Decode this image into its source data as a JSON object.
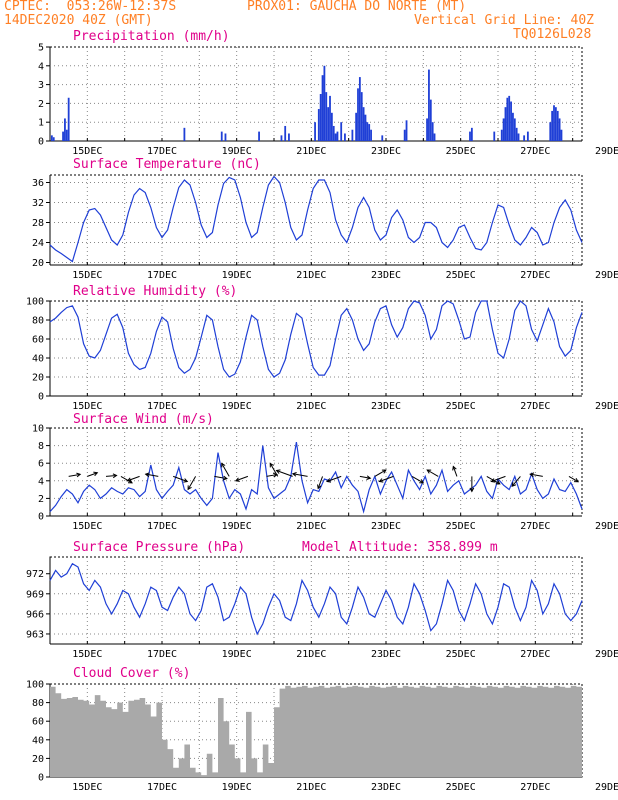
{
  "header": {
    "line1_left": "CPTEC:  053:26W-12:37S",
    "line1_right": "PROX01: GAUCHA DO NORTE (MT)",
    "line2_left": "14DEC2020 40Z (GMT)",
    "line2_right": "Vertical Grid Line: 40Z",
    "line3_right": "TQ0126L028"
  },
  "colors": {
    "header": "#ff7f24",
    "title": "#e0008a",
    "line": "#1f3fd6",
    "bar": "#1f3fd6",
    "cloud": "#a9a9a9",
    "arrow": "#000000"
  },
  "x_ticks": [
    "15DEC",
    "17DEC",
    "19DEC",
    "21DEC",
    "23DEC",
    "25DEC",
    "27DEC",
    "29DEC"
  ],
  "chart_data": [
    {
      "id": "precip",
      "type": "bar",
      "title": "Precipitation (mm/h)",
      "ylim": [
        0,
        5
      ],
      "yticks": [
        0,
        1,
        2,
        3,
        4,
        5
      ],
      "x_unit": "days since 14DEC2020 00Z",
      "x": [
        0.05,
        0.1,
        0.35,
        0.4,
        0.45,
        0.5,
        3.6,
        4.6,
        4.7,
        5.6,
        6.2,
        6.3,
        6.4,
        7.1,
        7.2,
        7.25,
        7.3,
        7.35,
        7.4,
        7.45,
        7.5,
        7.55,
        7.6,
        7.65,
        7.7,
        7.8,
        7.9,
        8.1,
        8.2,
        8.25,
        8.3,
        8.35,
        8.4,
        8.45,
        8.5,
        8.55,
        8.6,
        8.9,
        9.5,
        9.55,
        10.1,
        10.15,
        10.2,
        10.25,
        10.3,
        11.25,
        11.3,
        11.9,
        12.1,
        12.15,
        12.2,
        12.25,
        12.3,
        12.35,
        12.4,
        12.45,
        12.5,
        12.55,
        12.7,
        12.8,
        13.4,
        13.45,
        13.5,
        13.55,
        13.6,
        13.65,
        13.7
      ],
      "values": [
        0.3,
        0.2,
        0.5,
        1.2,
        0.6,
        2.3,
        0.7,
        0.5,
        0.4,
        0.5,
        0.3,
        0.8,
        0.4,
        1.0,
        1.7,
        2.5,
        3.5,
        4.0,
        2.6,
        1.8,
        2.4,
        1.5,
        0.8,
        0.4,
        0.5,
        1.0,
        0.4,
        0.6,
        1.5,
        2.8,
        3.4,
        2.6,
        1.8,
        1.4,
        1.0,
        0.9,
        0.6,
        0.3,
        0.6,
        1.1,
        1.2,
        3.8,
        2.2,
        1.0,
        0.4,
        0.5,
        0.7,
        0.5,
        0.6,
        1.2,
        1.8,
        2.3,
        2.4,
        2.1,
        1.5,
        1.2,
        0.7,
        0.4,
        0.3,
        0.5,
        1.0,
        1.6,
        1.9,
        1.8,
        1.6,
        1.2,
        0.6
      ]
    },
    {
      "id": "temp",
      "type": "line",
      "title": "Surface Temperature (nC)",
      "ylim": [
        19.5,
        37.5
      ],
      "yticks": [
        20,
        24,
        28,
        32,
        36
      ],
      "x_unit": "days since 14DEC2020 00Z",
      "x": [
        0,
        0.15,
        0.3,
        0.45,
        0.6,
        0.75,
        0.9,
        1.05,
        1.2,
        1.35,
        1.5,
        1.65,
        1.8,
        1.95,
        2.1,
        2.25,
        2.4,
        2.55,
        2.7,
        2.85,
        3.0,
        3.15,
        3.3,
        3.45,
        3.6,
        3.75,
        3.9,
        4.05,
        4.2,
        4.35,
        4.5,
        4.65,
        4.8,
        4.95,
        5.1,
        5.25,
        5.4,
        5.55,
        5.7,
        5.85,
        6.0,
        6.15,
        6.3,
        6.45,
        6.6,
        6.75,
        6.9,
        7.05,
        7.2,
        7.35,
        7.5,
        7.65,
        7.8,
        7.95,
        8.1,
        8.25,
        8.4,
        8.55,
        8.7,
        8.85,
        9.0,
        9.15,
        9.3,
        9.45,
        9.6,
        9.75,
        9.9,
        10.05,
        10.2,
        10.35,
        10.5,
        10.65,
        10.8,
        10.95,
        11.1,
        11.25,
        11.4,
        11.55,
        11.7,
        11.85,
        12.0,
        12.15,
        12.3,
        12.45,
        12.6,
        12.75,
        12.9,
        13.05,
        13.2,
        13.35,
        13.5,
        13.65,
        13.8,
        13.95,
        14.1,
        14.25
      ],
      "values": [
        23.5,
        22.5,
        21.8,
        21.0,
        20.2,
        24.0,
        28.0,
        30.5,
        30.8,
        29.5,
        27.0,
        24.5,
        23.5,
        25.5,
        30.0,
        33.5,
        34.8,
        34.0,
        31.0,
        27.0,
        25.0,
        26.5,
        31.0,
        35.0,
        36.5,
        35.5,
        32.0,
        27.5,
        25.0,
        26.0,
        31.5,
        35.8,
        37.0,
        36.5,
        33.0,
        28.0,
        25.0,
        26.0,
        31.0,
        35.5,
        37.2,
        36.0,
        32.0,
        27.0,
        24.5,
        25.5,
        30.5,
        34.8,
        36.5,
        36.5,
        34.0,
        28.5,
        25.5,
        24.0,
        27.0,
        31.0,
        33.0,
        31.0,
        26.5,
        24.5,
        25.5,
        29.0,
        30.5,
        28.5,
        25.0,
        24.0,
        25.0,
        28.0,
        28.0,
        27.0,
        24.0,
        23.0,
        24.5,
        27.0,
        27.5,
        25.0,
        22.8,
        22.5,
        24.0,
        28.0,
        31.5,
        31.0,
        27.5,
        24.5,
        23.5,
        25.0,
        27.0,
        26.0,
        23.5,
        24.0,
        28.0,
        31.0,
        32.5,
        30.5,
        26.5,
        24.0
      ]
    },
    {
      "id": "rh",
      "type": "line",
      "title": "Relative Humidity (%)",
      "ylim": [
        0,
        100
      ],
      "yticks": [
        0,
        20,
        40,
        60,
        80,
        100
      ],
      "x_unit": "days since 14DEC2020 00Z",
      "x": [
        0,
        0.15,
        0.3,
        0.45,
        0.6,
        0.75,
        0.9,
        1.05,
        1.2,
        1.35,
        1.5,
        1.65,
        1.8,
        1.95,
        2.1,
        2.25,
        2.4,
        2.55,
        2.7,
        2.85,
        3.0,
        3.15,
        3.3,
        3.45,
        3.6,
        3.75,
        3.9,
        4.05,
        4.2,
        4.35,
        4.5,
        4.65,
        4.8,
        4.95,
        5.1,
        5.25,
        5.4,
        5.55,
        5.7,
        5.85,
        6.0,
        6.15,
        6.3,
        6.45,
        6.6,
        6.75,
        6.9,
        7.05,
        7.2,
        7.35,
        7.5,
        7.65,
        7.8,
        7.95,
        8.1,
        8.25,
        8.4,
        8.55,
        8.7,
        8.85,
        9.0,
        9.15,
        9.3,
        9.45,
        9.6,
        9.75,
        9.9,
        10.05,
        10.2,
        10.35,
        10.5,
        10.65,
        10.8,
        10.95,
        11.1,
        11.25,
        11.4,
        11.55,
        11.7,
        11.85,
        12.0,
        12.15,
        12.3,
        12.45,
        12.6,
        12.75,
        12.9,
        13.05,
        13.2,
        13.35,
        13.5,
        13.65,
        13.8,
        13.95,
        14.1,
        14.25
      ],
      "values": [
        78,
        82,
        88,
        93,
        95,
        83,
        55,
        42,
        40,
        48,
        65,
        82,
        86,
        72,
        45,
        33,
        28,
        30,
        45,
        68,
        83,
        78,
        50,
        30,
        24,
        28,
        40,
        62,
        85,
        80,
        52,
        28,
        20,
        23,
        36,
        62,
        85,
        80,
        52,
        28,
        20,
        24,
        38,
        65,
        87,
        82,
        55,
        30,
        22,
        22,
        32,
        60,
        85,
        92,
        80,
        60,
        48,
        55,
        78,
        92,
        95,
        75,
        62,
        72,
        92,
        100,
        98,
        85,
        60,
        70,
        95,
        100,
        97,
        80,
        60,
        62,
        88,
        100,
        100,
        70,
        45,
        40,
        60,
        90,
        100,
        95,
        70,
        58,
        75,
        92,
        78,
        52,
        42,
        48,
        72,
        88
      ]
    },
    {
      "id": "wind",
      "type": "line",
      "title": "Surface Wind (m/s)",
      "ylim": [
        0,
        10
      ],
      "yticks": [
        0,
        2,
        4,
        6,
        8,
        10
      ],
      "x_unit": "days since 14DEC2020 00Z",
      "x": [
        0,
        0.15,
        0.3,
        0.45,
        0.6,
        0.75,
        0.9,
        1.05,
        1.2,
        1.35,
        1.5,
        1.65,
        1.8,
        1.95,
        2.1,
        2.25,
        2.4,
        2.55,
        2.7,
        2.85,
        3.0,
        3.15,
        3.3,
        3.45,
        3.6,
        3.75,
        3.9,
        4.05,
        4.2,
        4.35,
        4.5,
        4.65,
        4.8,
        4.95,
        5.1,
        5.25,
        5.4,
        5.55,
        5.7,
        5.85,
        6.0,
        6.15,
        6.3,
        6.45,
        6.6,
        6.75,
        6.9,
        7.05,
        7.2,
        7.35,
        7.5,
        7.65,
        7.8,
        7.95,
        8.1,
        8.25,
        8.4,
        8.55,
        8.7,
        8.85,
        9.0,
        9.15,
        9.3,
        9.45,
        9.6,
        9.75,
        9.9,
        10.05,
        10.2,
        10.35,
        10.5,
        10.65,
        10.8,
        10.95,
        11.1,
        11.25,
        11.4,
        11.55,
        11.7,
        11.85,
        12.0,
        12.15,
        12.3,
        12.45,
        12.6,
        12.75,
        12.9,
        13.05,
        13.2,
        13.35,
        13.5,
        13.65,
        13.8,
        13.95,
        14.1,
        14.25
      ],
      "values": [
        0.5,
        1.2,
        2.2,
        3.0,
        2.5,
        1.5,
        2.8,
        3.5,
        3.0,
        2.0,
        2.5,
        3.2,
        2.8,
        2.5,
        3.2,
        3.0,
        2.2,
        2.8,
        5.8,
        3.0,
        2.0,
        2.8,
        3.5,
        5.5,
        3.0,
        2.5,
        3.0,
        2.0,
        1.2,
        2.0,
        7.2,
        4.0,
        2.0,
        3.0,
        2.5,
        0.8,
        3.0,
        2.5,
        8.0,
        3.2,
        2.0,
        2.5,
        3.0,
        4.5,
        8.4,
        4.0,
        1.5,
        3.0,
        2.8,
        4.2,
        4.0,
        5.0,
        3.2,
        4.5,
        3.5,
        2.8,
        0.5,
        3.0,
        4.5,
        2.5,
        4.0,
        5.0,
        3.5,
        2.0,
        5.2,
        4.0,
        3.0,
        4.5,
        2.5,
        3.5,
        5.2,
        2.8,
        3.5,
        4.0,
        2.5,
        3.0,
        3.5,
        4.5,
        2.8,
        2.0,
        4.2,
        3.5,
        3.0,
        4.5,
        2.5,
        3.0,
        4.8,
        3.0,
        2.0,
        2.5,
        4.2,
        3.0,
        2.8,
        3.8,
        2.5,
        0.8
      ],
      "arrows_x": [
        0.5,
        1.0,
        1.5,
        1.9,
        2.4,
        2.9,
        3.3,
        3.9,
        4.4,
        4.8,
        5.3,
        5.8,
        6.1,
        6.5,
        6.9,
        7.3,
        7.8,
        8.3,
        8.7,
        9.2,
        9.7,
        10.4,
        10.9,
        11.3,
        11.7,
        12.2,
        12.6,
        13.2,
        13.9
      ],
      "arrows_dir_deg": [
        80,
        70,
        85,
        120,
        250,
        280,
        110,
        210,
        100,
        330,
        250,
        80,
        330,
        290,
        280,
        200,
        250,
        100,
        60,
        250,
        120,
        300,
        340,
        180,
        120,
        250,
        220,
        280,
        120
      ],
      "arrows_speed": [
        3.5,
        3,
        3,
        4,
        4,
        4,
        5,
        5,
        4,
        5,
        4,
        3,
        5,
        6,
        5,
        4,
        5,
        3,
        4,
        5,
        4,
        4,
        3,
        5,
        5,
        5,
        4,
        4,
        3
      ]
    },
    {
      "id": "pres",
      "type": "line",
      "title": "Surface Pressure (hPa)",
      "subtitle": "Model Altitude: 358.899 m",
      "ylim": [
        961.5,
        974.5
      ],
      "yticks": [
        963,
        966,
        969,
        972
      ],
      "x_unit": "days since 14DEC2020 00Z",
      "x": [
        0,
        0.15,
        0.3,
        0.45,
        0.6,
        0.75,
        0.9,
        1.05,
        1.2,
        1.35,
        1.5,
        1.65,
        1.8,
        1.95,
        2.1,
        2.25,
        2.4,
        2.55,
        2.7,
        2.85,
        3.0,
        3.15,
        3.3,
        3.45,
        3.6,
        3.75,
        3.9,
        4.05,
        4.2,
        4.35,
        4.5,
        4.65,
        4.8,
        4.95,
        5.1,
        5.25,
        5.4,
        5.55,
        5.7,
        5.85,
        6.0,
        6.15,
        6.3,
        6.45,
        6.6,
        6.75,
        6.9,
        7.05,
        7.2,
        7.35,
        7.5,
        7.65,
        7.8,
        7.95,
        8.1,
        8.25,
        8.4,
        8.55,
        8.7,
        8.85,
        9.0,
        9.15,
        9.3,
        9.45,
        9.6,
        9.75,
        9.9,
        10.05,
        10.2,
        10.35,
        10.5,
        10.65,
        10.8,
        10.95,
        11.1,
        11.25,
        11.4,
        11.55,
        11.7,
        11.85,
        12.0,
        12.15,
        12.3,
        12.45,
        12.6,
        12.75,
        12.9,
        13.05,
        13.2,
        13.35,
        13.5,
        13.65,
        13.8,
        13.95,
        14.1,
        14.25
      ],
      "values": [
        971.0,
        972.5,
        971.5,
        972.0,
        973.5,
        973.0,
        970.5,
        969.5,
        971.0,
        970.0,
        967.5,
        966.0,
        967.5,
        969.5,
        969.0,
        967.0,
        965.5,
        967.5,
        970.0,
        969.5,
        967.0,
        966.5,
        968.5,
        970.0,
        969.0,
        966.0,
        965.0,
        966.5,
        970.0,
        970.5,
        968.5,
        965.0,
        965.5,
        967.5,
        970.0,
        969.0,
        965.5,
        963.0,
        964.5,
        967.0,
        969.0,
        968.0,
        965.5,
        965.0,
        967.5,
        971.0,
        969.5,
        967.0,
        965.5,
        967.5,
        970.0,
        969.0,
        965.5,
        964.5,
        967.0,
        970.0,
        968.5,
        966.0,
        965.5,
        967.5,
        969.5,
        968.0,
        965.5,
        964.5,
        967.0,
        970.5,
        969.0,
        966.5,
        963.5,
        964.5,
        967.5,
        971.0,
        969.5,
        966.5,
        965.0,
        967.5,
        970.5,
        969.0,
        966.0,
        964.5,
        967.0,
        970.5,
        970.0,
        967.0,
        965.0,
        967.0,
        971.0,
        969.5,
        966.0,
        967.5,
        970.5,
        969.0,
        966.0,
        965.0,
        966.0,
        968.0
      ]
    },
    {
      "id": "cloud",
      "type": "area",
      "title": "Cloud Cover (%)",
      "ylim": [
        0,
        100
      ],
      "yticks": [
        0,
        20,
        40,
        60,
        80,
        100
      ],
      "x_unit": "days since 14DEC2020 00Z",
      "x": [
        0,
        0.15,
        0.3,
        0.45,
        0.6,
        0.75,
        0.9,
        1.05,
        1.2,
        1.35,
        1.5,
        1.65,
        1.8,
        1.95,
        2.1,
        2.25,
        2.4,
        2.55,
        2.7,
        2.85,
        3.0,
        3.15,
        3.3,
        3.45,
        3.6,
        3.75,
        3.9,
        4.05,
        4.2,
        4.35,
        4.5,
        4.65,
        4.8,
        4.95,
        5.1,
        5.25,
        5.4,
        5.55,
        5.7,
        5.85,
        6.0,
        6.15,
        6.3,
        6.45,
        6.6,
        6.75,
        6.9,
        7.05,
        7.2,
        7.35,
        7.5,
        7.65,
        7.8,
        7.95,
        8.1,
        8.25,
        8.4,
        8.55,
        8.7,
        8.85,
        9.0,
        9.15,
        9.3,
        9.45,
        9.6,
        9.75,
        9.9,
        10.05,
        10.2,
        10.35,
        10.5,
        10.65,
        10.8,
        10.95,
        11.1,
        11.25,
        11.4,
        11.55,
        11.7,
        11.85,
        12.0,
        12.15,
        12.3,
        12.45,
        12.6,
        12.75,
        12.9,
        13.05,
        13.2,
        13.35,
        13.5,
        13.65,
        13.8,
        13.95,
        14.1,
        14.25
      ],
      "values": [
        97,
        90,
        84,
        85,
        86,
        83,
        82,
        78,
        88,
        82,
        75,
        73,
        80,
        70,
        82,
        83,
        85,
        78,
        65,
        80,
        40,
        30,
        10,
        20,
        35,
        10,
        5,
        2,
        25,
        5,
        85,
        60,
        35,
        20,
        5,
        70,
        20,
        5,
        35,
        15,
        75,
        95,
        98,
        96,
        97,
        98,
        96,
        97,
        98,
        96,
        97,
        98,
        96,
        97,
        98,
        97,
        96,
        98,
        97,
        96,
        97,
        98,
        96,
        98,
        97,
        96,
        98,
        97,
        96,
        98,
        97,
        96,
        98,
        97,
        96,
        98,
        97,
        96,
        98,
        97,
        96,
        98,
        97,
        96,
        98,
        97,
        96,
        98,
        97,
        96,
        98,
        97,
        96,
        98,
        97,
        96
      ]
    }
  ]
}
